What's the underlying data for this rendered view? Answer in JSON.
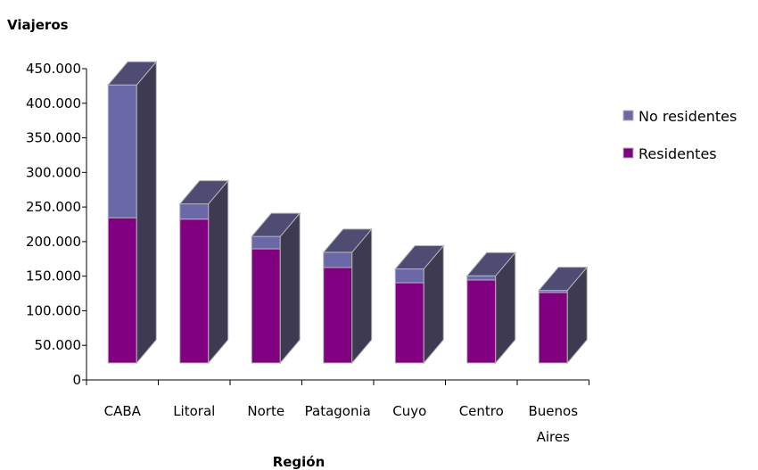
{
  "chart_data": {
    "type": "bar",
    "stacked": true,
    "three_d": true,
    "ylabel": "Viajeros",
    "xlabel": "Región",
    "ylim": [
      0,
      450000
    ],
    "ytick_step": 50000,
    "yticks": [
      "0",
      "50.000",
      "100.000",
      "150.000",
      "200.000",
      "250.000",
      "300.000",
      "350.000",
      "400.000",
      "450.000"
    ],
    "categories": [
      [
        "CABA"
      ],
      [
        "Litoral"
      ],
      [
        "Norte"
      ],
      [
        "Patagonia"
      ],
      [
        "Cuyo"
      ],
      [
        "Centro"
      ],
      [
        "Buenos",
        "Aires"
      ]
    ],
    "series": [
      {
        "name": "Residentes",
        "values": [
          210000,
          208000,
          165000,
          138000,
          116000,
          120000,
          102000
        ],
        "color": "#800080"
      },
      {
        "name": "No residentes",
        "values": [
          192000,
          22000,
          18000,
          22000,
          20000,
          6000,
          3000
        ],
        "color": "#6b68a8"
      }
    ],
    "legend": {
      "position": "right",
      "order": [
        "No residentes",
        "Residentes"
      ]
    },
    "colors": {
      "side_shade": "#3e3a52",
      "top_shade": "#4e4c73",
      "edge": "#b4b4b4"
    }
  }
}
